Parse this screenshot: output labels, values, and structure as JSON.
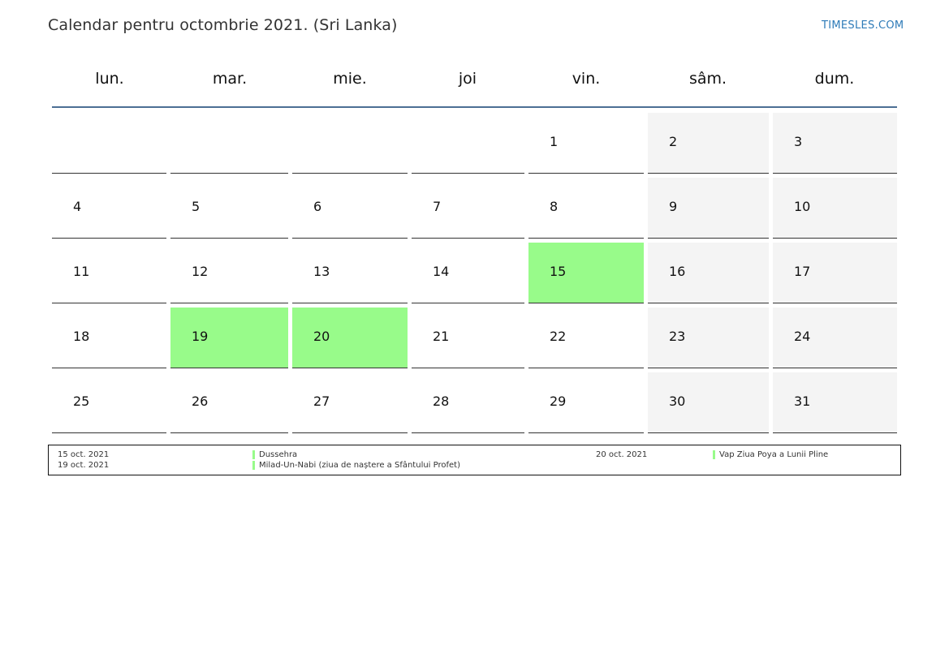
{
  "header": {
    "title": "Calendar pentru octombrie 2021. (Sri Lanka)",
    "brand": "TIMESLES.COM"
  },
  "weekdays": [
    "lun.",
    "mar.",
    "mie.",
    "joi",
    "vin.",
    "sâm.",
    "dum."
  ],
  "weeks": [
    [
      {
        "day": ""
      },
      {
        "day": ""
      },
      {
        "day": ""
      },
      {
        "day": ""
      },
      {
        "day": "1"
      },
      {
        "day": "2",
        "weekend": true
      },
      {
        "day": "3",
        "weekend": true
      }
    ],
    [
      {
        "day": "4"
      },
      {
        "day": "5"
      },
      {
        "day": "6"
      },
      {
        "day": "7"
      },
      {
        "day": "8"
      },
      {
        "day": "9",
        "weekend": true
      },
      {
        "day": "10",
        "weekend": true
      }
    ],
    [
      {
        "day": "11"
      },
      {
        "day": "12"
      },
      {
        "day": "13"
      },
      {
        "day": "14"
      },
      {
        "day": "15",
        "holiday": true
      },
      {
        "day": "16",
        "weekend": true
      },
      {
        "day": "17",
        "weekend": true
      }
    ],
    [
      {
        "day": "18"
      },
      {
        "day": "19",
        "holiday": true
      },
      {
        "day": "20",
        "holiday": true
      },
      {
        "day": "21"
      },
      {
        "day": "22"
      },
      {
        "day": "23",
        "weekend": true
      },
      {
        "day": "24",
        "weekend": true
      }
    ],
    [
      {
        "day": "25"
      },
      {
        "day": "26"
      },
      {
        "day": "27"
      },
      {
        "day": "28"
      },
      {
        "day": "29"
      },
      {
        "day": "30",
        "weekend": true
      },
      {
        "day": "31",
        "weekend": true
      }
    ]
  ],
  "holidays": [
    {
      "date": "15 oct. 2021",
      "name": "Dussehra"
    },
    {
      "date": "19 oct. 2021",
      "name": "Milad-Un-Nabi (ziua de naștere a Sfântului Profet)"
    },
    {
      "date": "20 oct. 2021",
      "name": "Vap Ziua Poya a Lunii Pline"
    }
  ],
  "colors": {
    "holiday": "#98fb8a",
    "weekend": "#f4f4f4",
    "header_rule": "#4c6f94",
    "brand": "#2e7bb8"
  }
}
